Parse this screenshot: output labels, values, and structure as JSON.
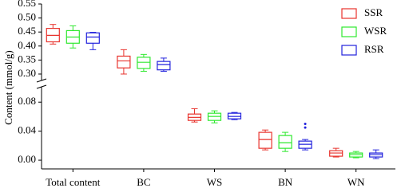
{
  "chart_data": {
    "type": "box",
    "y_label": "Content (mmol/g)",
    "categories": [
      "Total content",
      "BC",
      "WS",
      "BN",
      "WN"
    ],
    "y_segments": [
      {
        "ylim": [
          -0.012,
          0.1
        ],
        "yticks": [
          {
            "value": 0,
            "label": "0.00"
          },
          0.04,
          0.08
        ]
      },
      {
        "ylim": [
          0.28,
          0.55
        ],
        "yticks": [
          {
            "value": 0.3,
            "label": "0.30"
          },
          0.35,
          {
            "value": 0.4,
            "label": "0.40"
          },
          0.45,
          {
            "value": 0.5,
            "label": "0.50"
          },
          0.55
        ]
      }
    ],
    "legend": "upper right",
    "series": [
      {
        "name": "SSR",
        "color": "#e8332d",
        "boxes": [
          {
            "min": 0.407,
            "q1": 0.415,
            "median": 0.438,
            "q3": 0.463,
            "max": 0.477
          },
          {
            "min": 0.3,
            "q1": 0.322,
            "median": 0.347,
            "q3": 0.364,
            "max": 0.387
          },
          {
            "min": 0.0526,
            "q1": 0.0548,
            "median": 0.059,
            "q3": 0.0636,
            "max": 0.071
          },
          {
            "min": 0.0142,
            "q1": 0.0164,
            "median": 0.0285,
            "q3": 0.0384,
            "max": 0.0416
          },
          {
            "min": 0.0044,
            "q1": 0.0055,
            "median": 0.0099,
            "q3": 0.0131,
            "max": 0.0164
          }
        ]
      },
      {
        "name": "WSR",
        "color": "#2ee82e",
        "boxes": [
          {
            "min": 0.393,
            "q1": 0.41,
            "median": 0.432,
            "q3": 0.455,
            "max": 0.472
          },
          {
            "min": 0.31,
            "q1": 0.32,
            "median": 0.342,
            "q3": 0.36,
            "max": 0.37
          },
          {
            "min": 0.0515,
            "q1": 0.0548,
            "median": 0.0603,
            "q3": 0.0647,
            "max": 0.068
          },
          {
            "min": 0.012,
            "q1": 0.0164,
            "median": 0.0241,
            "q3": 0.034,
            "max": 0.0384
          },
          {
            "min": 0.0033,
            "q1": 0.0044,
            "median": 0.0077,
            "q3": 0.0099,
            "max": 0.012
          }
        ]
      },
      {
        "name": "RSR",
        "color": "#2222dd",
        "boxes": [
          {
            "min": 0.387,
            "q1": 0.41,
            "median": 0.432,
            "q3": 0.447,
            "max": 0.449
          },
          {
            "min": 0.31,
            "q1": 0.315,
            "median": 0.334,
            "q3": 0.345,
            "max": 0.357
          },
          {
            "min": 0.0559,
            "q1": 0.057,
            "median": 0.0603,
            "q3": 0.0647,
            "max": 0.0658
          },
          {
            "min": 0.0142,
            "q1": 0.0164,
            "median": 0.0219,
            "q3": 0.0263,
            "max": 0.0285,
            "outliers": [
              0.045,
              0.05
            ]
          },
          {
            "min": 0.0022,
            "q1": 0.0044,
            "median": 0.0077,
            "q3": 0.0099,
            "max": 0.0142
          }
        ]
      }
    ]
  }
}
